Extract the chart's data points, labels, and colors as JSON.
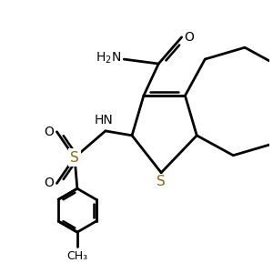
{
  "bg_color": "#ffffff",
  "line_color": "#000000",
  "s_color": "#8B6914",
  "bond_lw": 2.0,
  "figsize": [
    3.0,
    2.89
  ],
  "dpi": 100,
  "xlim": [
    0,
    10
  ],
  "ylim": [
    0,
    9.63
  ]
}
